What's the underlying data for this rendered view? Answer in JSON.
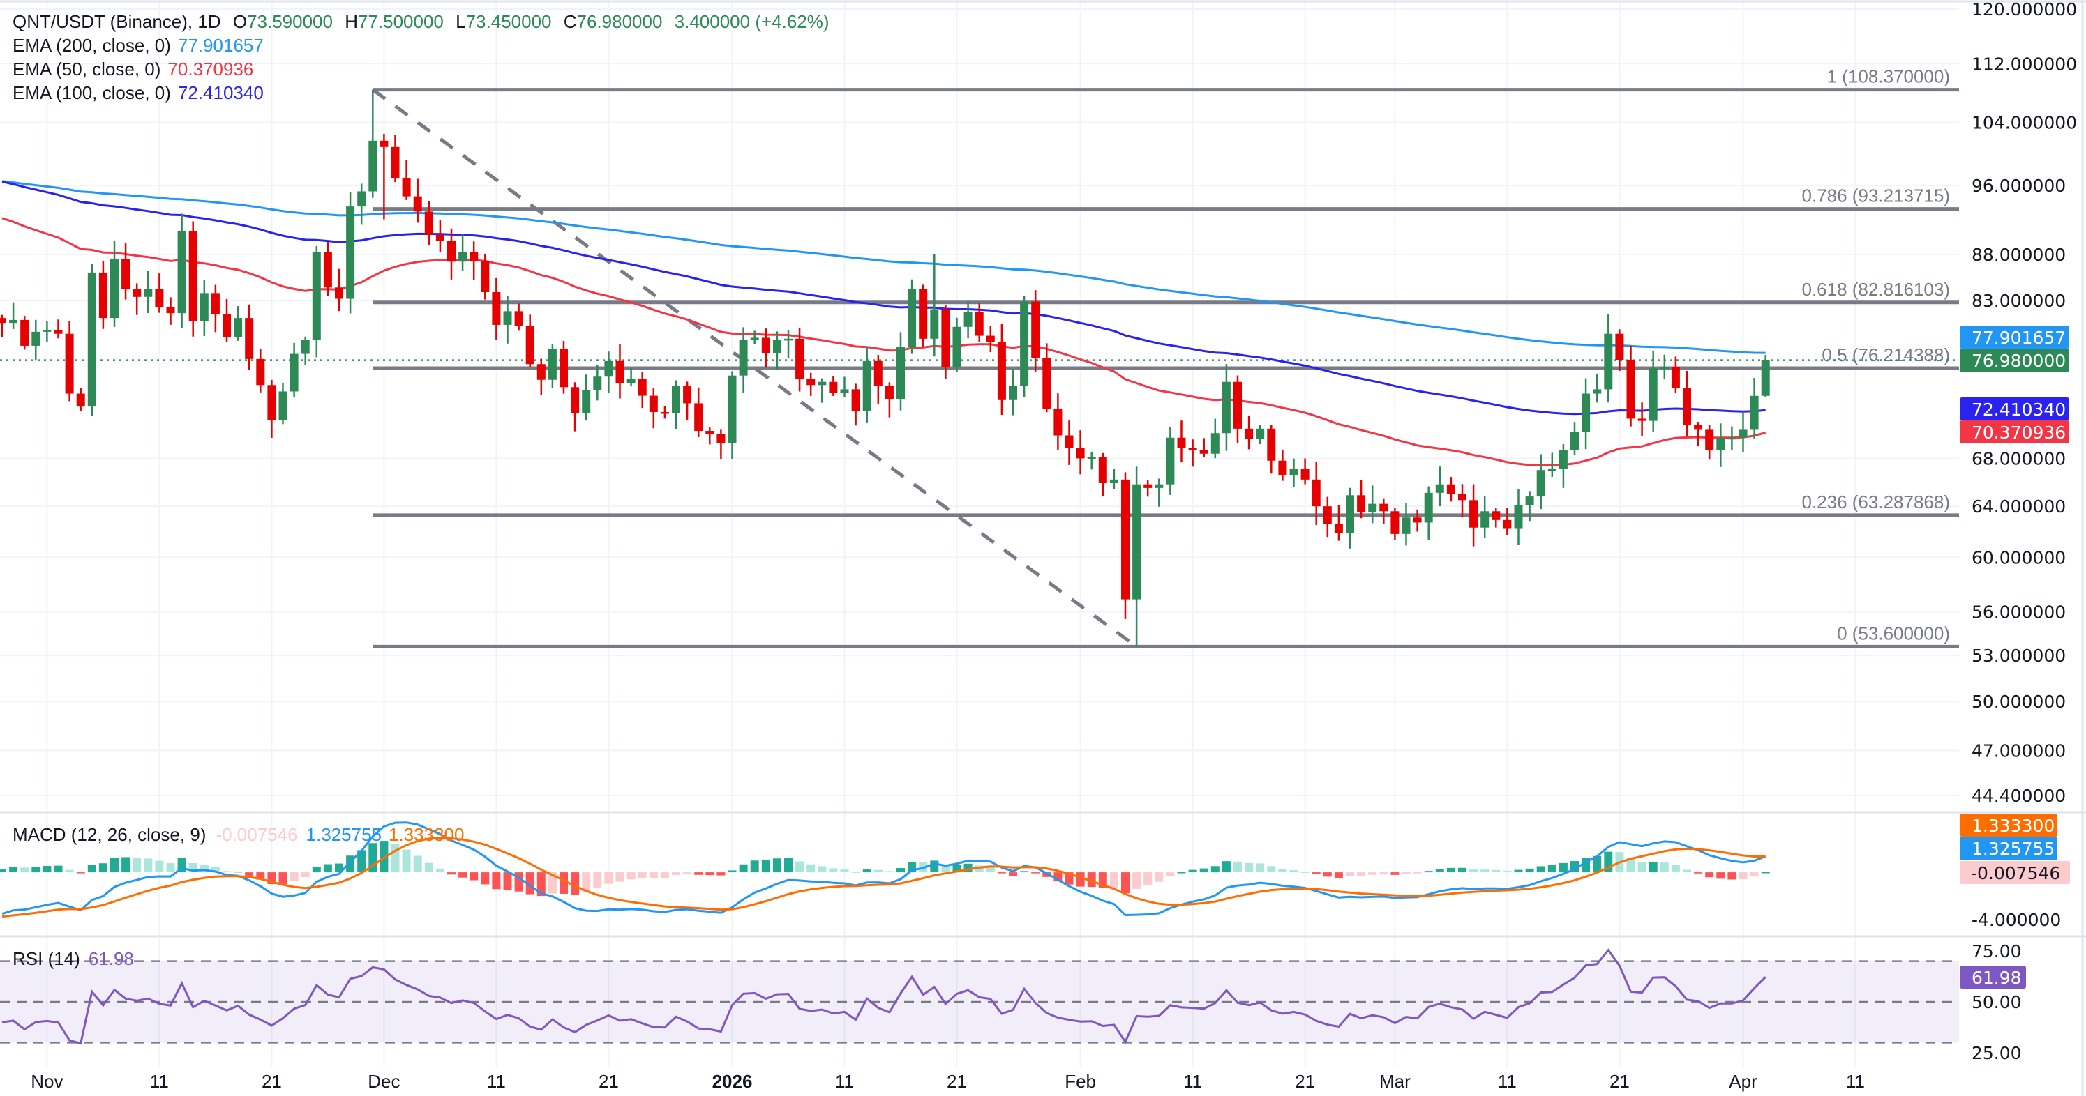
{
  "legend": {
    "symbol": "QNT/USDT (Binance), 1D",
    "ohlc": [
      {
        "k": "O",
        "v": "73.590000"
      },
      {
        "k": "H",
        "v": "77.500000"
      },
      {
        "k": "L",
        "v": "73.450000"
      },
      {
        "k": "C",
        "v": "76.980000"
      }
    ],
    "change": "3.400000 (+4.62%)",
    "emas": [
      {
        "label": "EMA (200, close, 0)",
        "value": "77.901657",
        "color": "#2196f3"
      },
      {
        "label": "EMA (50, close, 0)",
        "value": "70.370936",
        "color": "#f23645"
      },
      {
        "label": "EMA (100, close, 0)",
        "value": "72.410340",
        "color": "#2a22f0"
      }
    ]
  },
  "macd_legend": {
    "label": "MACD (12, 26, close, 9)",
    "hist": "-0.007546",
    "macd": "1.325755",
    "signal": "1.333300"
  },
  "rsi_legend": {
    "label": "RSI (14)",
    "value": "61.98"
  },
  "price_labels": {
    "ema200": "77.901657",
    "last": "76.980000",
    "ema100": "72.410340",
    "ema50": "70.370936"
  },
  "macd_labels": {
    "signal": "1.333300",
    "macd": "1.325755",
    "hist": "-0.007546",
    "tick": "-4.000000"
  },
  "rsi_labels": {
    "value": "61.98",
    "ticks": [
      "75.00",
      "50.00",
      "25.00"
    ]
  },
  "chart_data": {
    "type": "candlestick",
    "title": "QNT/USDT (Binance), 1D",
    "scale": "log",
    "ylim": [
      44.4,
      120
    ],
    "price_axis_ticks": [
      "120.000000",
      "112.000000",
      "104.000000",
      "96.000000",
      "88.000000",
      "83.000000",
      "68.000000",
      "64.000000",
      "60.000000",
      "56.000000",
      "53.000000",
      "50.000000",
      "47.000000",
      "44.400000"
    ],
    "first_open": 81.2,
    "close": [
      80.7,
      81.0,
      78.4,
      79.8,
      80.0,
      79.6,
      73.8,
      72.6,
      86.0,
      81.2,
      87.5,
      84.2,
      83.4,
      84.2,
      82.3,
      81.7,
      90.6,
      80.9,
      83.8,
      81.6,
      79.3,
      81.2,
      77.1,
      74.6,
      71.4,
      74.0,
      77.6,
      79.0,
      88.3,
      84.4,
      83.2,
      93.5,
      95.3,
      101.6,
      100.8,
      96.9,
      94.7,
      92.9,
      90.2,
      89.5,
      87.2,
      88.3,
      87.3,
      83.9,
      80.5,
      81.9,
      80.4,
      76.6,
      75.1,
      78.1,
      74.4,
      72.0,
      74.1,
      75.4,
      76.9,
      74.8,
      75.2,
      73.6,
      72.1,
      72.0,
      74.5,
      72.9,
      70.4,
      70.1,
      69.3,
      75.5,
      79.0,
      79.2,
      77.7,
      79.0,
      79.1,
      75.2,
      74.6,
      74.9,
      73.9,
      74.2,
      72.2,
      76.9,
      74.5,
      73.3,
      78.3,
      84.2,
      79.1,
      82.1,
      76.3,
      80.3,
      81.8,
      79.4,
      78.8,
      73.2,
      74.5,
      82.9,
      77.2,
      72.4,
      70.0,
      68.9,
      68.0,
      68.1,
      65.9,
      66.2,
      56.9,
      65.8,
      65.5,
      65.8,
      69.8,
      68.9,
      68.7,
      68.4,
      70.2,
      74.9,
      70.6,
      69.7,
      70.6,
      67.8,
      66.6,
      67.1,
      66.2,
      64.0,
      62.6,
      61.9,
      64.9,
      63.5,
      64.2,
      63.6,
      61.8,
      63.1,
      62.7,
      65.1,
      65.8,
      65.0,
      64.5,
      62.3,
      63.6,
      62.9,
      62.2,
      64.1,
      64.8,
      67.0,
      67.1,
      68.7,
      70.3,
      73.8,
      74.2,
      79.6,
      77.0,
      71.5,
      71.3,
      76.2,
      76.3,
      74.3,
      70.9,
      70.5,
      68.7,
      69.8,
      69.8,
      70.5,
      73.59,
      76.98
    ],
    "wick_extremes": [
      {
        "bar": 33,
        "high": 108.37
      },
      {
        "bar": 34,
        "high": 102.5,
        "low": 92.0
      },
      {
        "bar": 83,
        "high": 88.0
      },
      {
        "bar": 100,
        "low": 55.5
      },
      {
        "bar": 101,
        "low": 53.6
      },
      {
        "bar": 143,
        "high": 81.6
      },
      {
        "bar": 157,
        "high": 77.5,
        "low": 73.45
      }
    ],
    "ema_seeds": {
      "ema200": 96.7,
      "ema100": 96.8,
      "ema50": 92.6
    },
    "indicator_seeds": {
      "ema12": 80.5,
      "ema26": 84.3,
      "signal": -3.8,
      "rsi_avg_gain": 0.8,
      "rsi_avg_loss": 1.2
    },
    "fib_levels": [
      {
        "label": "1 (108.370000)",
        "price": 108.37
      },
      {
        "label": "0.786 (93.213715)",
        "price": 93.213715
      },
      {
        "label": "0.618 (82.816103)",
        "price": 82.816103
      },
      {
        "label": "0.5 (76.214388)",
        "price": 76.214388
      },
      {
        "label": "0.236 (63.287868)",
        "price": 63.287868
      },
      {
        "label": "0 (53.600000)",
        "price": 53.6
      }
    ],
    "fib_trend": {
      "from_bar": 33,
      "from_price": 108.37,
      "to_bar": 101,
      "to_price": 53.6
    },
    "last_price": 76.98,
    "macd_range": [
      -5.4,
      5.06
    ],
    "rsi_bands": [
      70,
      50,
      30
    ],
    "date_ticks": [
      {
        "label": "Nov",
        "bar": 4
      },
      {
        "label": "11",
        "bar": 14
      },
      {
        "label": "21",
        "bar": 24
      },
      {
        "label": "Dec",
        "bar": 34
      },
      {
        "label": "11",
        "bar": 44
      },
      {
        "label": "21",
        "bar": 54
      },
      {
        "label": "2026",
        "bar": 65,
        "bold": true
      },
      {
        "label": "11",
        "bar": 75
      },
      {
        "label": "21",
        "bar": 85
      },
      {
        "label": "Feb",
        "bar": 96
      },
      {
        "label": "11",
        "bar": 106
      },
      {
        "label": "21",
        "bar": 116
      },
      {
        "label": "Mar",
        "bar": 124
      },
      {
        "label": "11",
        "bar": 134
      },
      {
        "label": "21",
        "bar": 144
      },
      {
        "label": "Apr",
        "bar": 155
      },
      {
        "label": "11",
        "bar": 165
      }
    ],
    "colors": {
      "up": "#2d8a56",
      "down": "#e60000",
      "ema200": "#2196f3",
      "ema100": "#2a22f0",
      "ema50": "#f23645",
      "macd": "#2196f3",
      "signal": "#ff6d00",
      "rsi": "#7e57c2",
      "fib": "#787b86"
    }
  }
}
